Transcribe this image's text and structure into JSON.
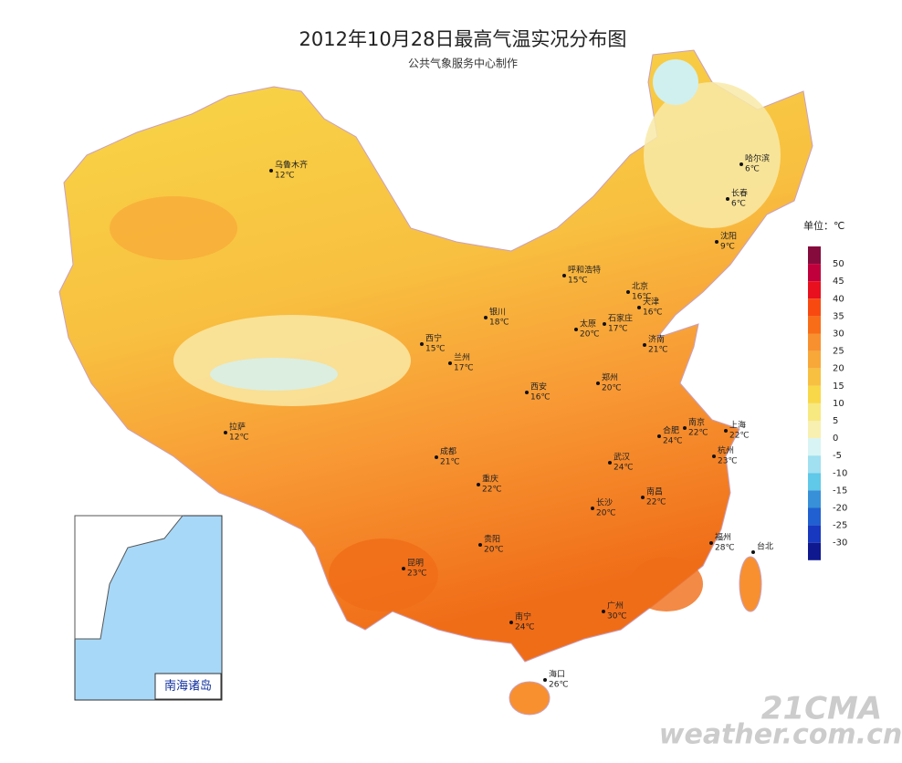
{
  "header": {
    "title": "2012年10月28日最高气温实况分布图",
    "subtitle": "公共气象服务中心制作"
  },
  "cities": [
    {
      "name": "乌鲁木齐",
      "temp": "12℃"
    },
    {
      "name": "哈尔滨",
      "temp": "6℃"
    },
    {
      "name": "长春",
      "temp": "6℃"
    },
    {
      "name": "沈阳",
      "temp": "9℃"
    },
    {
      "name": "呼和浩特",
      "temp": "15℃"
    },
    {
      "name": "北京",
      "temp": "16℃"
    },
    {
      "name": "天津",
      "temp": "16℃"
    },
    {
      "name": "银川",
      "temp": "18℃"
    },
    {
      "name": "太原",
      "temp": "20℃"
    },
    {
      "name": "石家庄",
      "temp": "17℃"
    },
    {
      "name": "济南",
      "temp": "21℃"
    },
    {
      "name": "西宁",
      "temp": "15℃"
    },
    {
      "name": "兰州",
      "temp": "17℃"
    },
    {
      "name": "西安",
      "temp": "16℃"
    },
    {
      "name": "郑州",
      "temp": "20℃"
    },
    {
      "name": "上海",
      "temp": "22℃"
    },
    {
      "name": "南京",
      "temp": "22℃"
    },
    {
      "name": "合肥",
      "temp": "24℃"
    },
    {
      "name": "杭州",
      "temp": "23℃"
    },
    {
      "name": "武汉",
      "temp": "24℃"
    },
    {
      "name": "拉萨",
      "temp": "12℃"
    },
    {
      "name": "成都",
      "temp": "21℃"
    },
    {
      "name": "重庆",
      "temp": "22℃"
    },
    {
      "name": "长沙",
      "temp": "20℃"
    },
    {
      "name": "南昌",
      "temp": "22℃"
    },
    {
      "name": "贵阳",
      "temp": "20℃"
    },
    {
      "name": "福州",
      "temp": "28℃"
    },
    {
      "name": "台北"
    },
    {
      "name": "昆明",
      "temp": "23℃"
    },
    {
      "name": "南宁",
      "temp": "24℃"
    },
    {
      "name": "广州",
      "temp": "30℃"
    },
    {
      "name": "海口",
      "temp": "26℃"
    }
  ],
  "legend": {
    "title": "单位：℃",
    "ticks": [
      50,
      45,
      40,
      35,
      30,
      25,
      20,
      15,
      10,
      5,
      0,
      -5,
      -10,
      -15,
      -20,
      -25,
      -30
    ],
    "colors": [
      "#860b3d",
      "#c0003c",
      "#e8101e",
      "#f84a10",
      "#f86d18",
      "#f89030",
      "#f8a838",
      "#f8c040",
      "#f8d848",
      "#f8e880",
      "#f8f0b0",
      "#d8f4f4",
      "#a0e0f0",
      "#60c8e8",
      "#3890d8",
      "#2060d0",
      "#1838c0",
      "#101890"
    ]
  },
  "inset": {
    "label": "南海诸岛"
  },
  "watermark": {
    "line1": "21CMA",
    "line2": "weather.com.cn"
  }
}
